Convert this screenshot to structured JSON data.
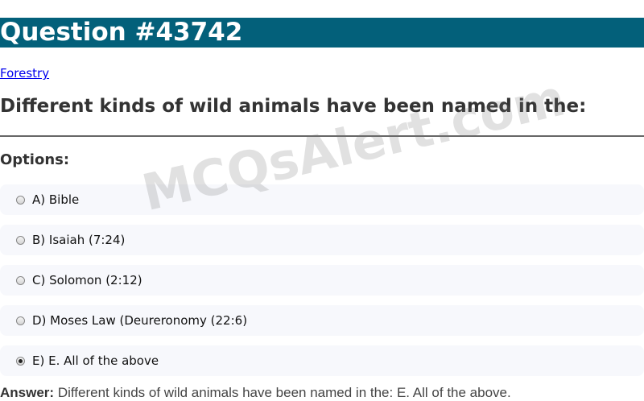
{
  "header": {
    "title": "Question #43742",
    "bg_color": "#03607a"
  },
  "category": {
    "label": "Forestry"
  },
  "question": {
    "text": "Different kinds of wild animals have been named in the:"
  },
  "options_label": "Options:",
  "options": [
    {
      "label": "A) Bible",
      "checked": false
    },
    {
      "label": "B) Isaiah (7:24)",
      "checked": false
    },
    {
      "label": "C) Solomon (2:12)",
      "checked": false
    },
    {
      "label": "D) Moses Law (Deureronomy (22:6)",
      "checked": false
    },
    {
      "label": "E) E. All of the above",
      "checked": true
    }
  ],
  "answer": {
    "label": "Answer:",
    "text": "Different kinds of wild animals have been named in the: E. All of the above."
  },
  "watermark": "MCQsAlert.com"
}
